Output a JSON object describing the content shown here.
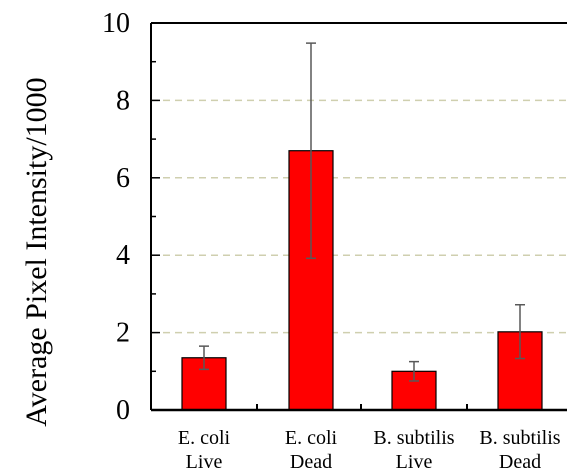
{
  "chart_data": {
    "type": "bar",
    "categories": [
      [
        "E. coli",
        "Live"
      ],
      [
        "E. coli",
        "Dead"
      ],
      [
        "B. subtilis",
        "Live"
      ],
      [
        "B. subtilis",
        "Dead"
      ]
    ],
    "values": [
      1.35,
      6.7,
      1.0,
      2.02
    ],
    "error_low": [
      1.05,
      3.92,
      0.75,
      1.33
    ],
    "error_high": [
      1.65,
      9.48,
      1.25,
      2.72
    ],
    "title": "",
    "xlabel": "",
    "ylabel": "Average Pixel Intensity/1000",
    "ylim": [
      0,
      10
    ],
    "yticks": [
      0,
      2,
      4,
      6,
      8,
      10
    ],
    "gridlines": [
      2,
      4,
      6,
      8
    ],
    "grid": true,
    "bar_color": "#ff0000",
    "grid_color": "#cfcfaf"
  }
}
